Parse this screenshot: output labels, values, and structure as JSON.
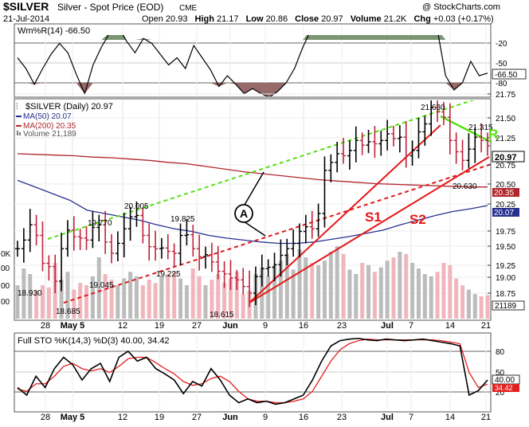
{
  "header": {
    "symbol": "$SILVER",
    "name": "Silver - Spot Price (EOD)",
    "exchange": "CME",
    "date": "21-Jul-2014",
    "open_label": "Open",
    "open": "20.93",
    "high_label": "High",
    "high": "21.17",
    "low_label": "Low",
    "low": "20.86",
    "close_label": "Close",
    "close": "20.97",
    "volume_label": "Volume",
    "volume": "21.2K",
    "chg_label": "Chg",
    "chg": "+0.03 (+0.17%)",
    "copyright": "@ StockCharts.com"
  },
  "colors": {
    "price": "#000000",
    "ma50": "#27308f",
    "ma200": "#b0262b",
    "upper_channel": "#55e010",
    "lower_channel": "#dd1b1b",
    "support": "#e41818",
    "r_line": "#55e010",
    "volume_up": "#bcbcbc",
    "volume_down": "#f0b6bc",
    "wpr_fill": "#6a8a63",
    "wpr_low_fill": "#8c5a5a",
    "sto_k": "#000000",
    "sto_d": "#e32020"
  },
  "top_panel": {
    "title": "Wm%R(14) -66.50",
    "ticks": [
      "-20",
      "-50",
      "-80"
    ],
    "last_value": "-66.50"
  },
  "main_panel": {
    "title": "$SILVER (Daily) 20.97",
    "legend": [
      {
        "text": "MA(50) 20.07",
        "color": "#27308f"
      },
      {
        "text": "MA(200) 20.35",
        "color": "#b0262b"
      },
      {
        "text": "Volume 21,189",
        "color": "#777777"
      }
    ],
    "price_ticks": [
      "21.75",
      "21.50",
      "21.25",
      "20.75",
      "20.50",
      "20.25",
      "19.75",
      "19.50",
      "19.25",
      "19.00",
      "18.75"
    ],
    "last_price": "20.97",
    "ma200_tag": "20.35",
    "ma50_tag": "20.07",
    "volume_tag": "21189",
    "left_volume_ticks": [
      "0K",
      "00",
      "00",
      "00"
    ],
    "annotations": [
      {
        "label": "21.630"
      },
      {
        "label": "21.315"
      },
      {
        "label": "20.630"
      },
      {
        "label": "20.005"
      },
      {
        "label": "19.770"
      },
      {
        "label": "19.825"
      },
      {
        "label": "19.045"
      },
      {
        "label": "19.225"
      },
      {
        "label": "18.930"
      },
      {
        "label": "18.685"
      },
      {
        "label": "18.615"
      }
    ],
    "callouts": {
      "a": "A",
      "s1": "S1",
      "s2": "S2",
      "r": "R"
    }
  },
  "bottom_panel": {
    "title": "Full STO %K(14,3) %D(3) 40.00, 34.42",
    "ticks": [
      "80",
      "50",
      "20"
    ],
    "k_tag": "40.00",
    "d_tag": "34.42"
  },
  "x_axis": {
    "labels": [
      "28",
      "May 5",
      "12",
      "19",
      "27",
      "Jun",
      "9",
      "16",
      "23",
      "Jul",
      "7",
      "14",
      "21"
    ]
  },
  "chart_data": [
    {
      "type": "line",
      "title": "Wm%R(14) -66.50",
      "series": [
        {
          "name": "Wm%R(14)",
          "values": [
            -45,
            -60,
            -82,
            -60,
            -40,
            -25,
            -38,
            -68,
            -95,
            -55,
            -30,
            -10,
            -2,
            -22,
            -38,
            -18,
            -25,
            -40,
            -55,
            -45,
            -60,
            -28,
            -45,
            -62,
            -85,
            -70,
            -82,
            -95,
            -88,
            -95,
            -100,
            -92,
            -80,
            -60,
            -30,
            -5,
            -8,
            -5,
            -10,
            -5,
            -3,
            -6,
            -5,
            -4,
            -3,
            -5,
            -2,
            -3,
            -3,
            -5,
            -5,
            -70,
            -90,
            -80,
            -50,
            -70,
            -66.5
          ]
        }
      ],
      "ylim": [
        -100,
        0
      ]
    },
    {
      "type": "line",
      "title": "$SILVER (Daily) 20.97",
      "series": [
        {
          "name": "$SILVER",
          "values": [
            19.42,
            19.55,
            19.78,
            19.62,
            19.2,
            19.15,
            18.93,
            19.42,
            19.7,
            19.6,
            19.58,
            19.55,
            19.74,
            19.78,
            19.52,
            19.35,
            19.5,
            19.72,
            19.9,
            19.92,
            19.62,
            19.45,
            19.42,
            19.43,
            19.38,
            19.35,
            19.62,
            19.63,
            19.42,
            19.3,
            19.33,
            19.22,
            19.08,
            19.04,
            18.98,
            18.95,
            18.85,
            18.75,
            19.0,
            19.12,
            19.14,
            19.18,
            19.32,
            19.42,
            19.5,
            19.68,
            19.75,
            19.72,
            19.95,
            20.6,
            20.72,
            20.85,
            20.82,
            20.9,
            21.05,
            20.98,
            21.03,
            21.0,
            21.05,
            21.15,
            21.08,
            21.1,
            20.82,
            20.9,
            21.18,
            21.3,
            21.55,
            21.48,
            21.4,
            21.05,
            20.88,
            20.75,
            20.92,
            21.1,
            21.05,
            20.97
          ]
        },
        {
          "name": "MA(50)",
          "values": [
            20.45,
            20.35,
            20.25,
            20.15,
            20.0,
            19.95,
            19.9,
            19.85,
            19.78,
            19.72,
            19.68,
            19.62,
            19.58,
            19.55,
            19.52,
            19.5,
            19.5,
            19.52,
            19.56,
            19.6,
            19.65,
            19.7,
            19.78,
            19.85,
            19.92,
            19.98,
            20.02,
            20.07
          ]
        },
        {
          "name": "MA(200)",
          "values": [
            20.85,
            20.84,
            20.83,
            20.82,
            20.8,
            20.79,
            20.77,
            20.75,
            20.72,
            20.7,
            20.66,
            20.62,
            20.58,
            20.55,
            20.52,
            20.49,
            20.46,
            20.44,
            20.42,
            20.4,
            20.39,
            20.38,
            20.37,
            20.36,
            20.35,
            20.35
          ]
        }
      ]
    },
    {
      "type": "bar",
      "title": "Volume 21,189",
      "values": [
        30,
        45,
        40,
        25,
        30,
        28,
        50,
        35,
        42,
        26,
        32,
        30,
        38,
        55,
        40,
        35,
        30,
        36,
        42,
        38,
        30,
        35,
        32,
        38,
        40,
        42,
        36,
        30,
        45,
        38,
        30,
        35,
        40,
        32,
        36,
        42,
        22,
        25,
        40,
        46,
        38,
        48,
        52,
        58,
        44,
        62,
        55,
        50,
        48,
        52,
        60,
        65,
        58,
        44,
        40,
        50,
        48,
        42,
        46,
        52,
        55,
        60,
        58,
        50,
        45,
        40,
        38,
        42,
        50,
        48,
        36,
        30,
        26,
        22,
        20,
        21
      ]
    },
    {
      "type": "line",
      "title": "Full STO %K(14,3) %D(3) 40.00, 34.42",
      "series": [
        {
          "name": "%K(14,3)",
          "values": [
            30,
            20,
            45,
            30,
            55,
            70,
            60,
            40,
            55,
            62,
            38,
            70,
            78,
            65,
            70,
            55,
            48,
            40,
            22,
            38,
            32,
            55,
            40,
            20,
            10,
            15,
            10,
            12,
            8,
            10,
            15,
            20,
            40,
            65,
            85,
            92,
            94,
            95,
            93,
            92,
            94,
            93,
            92,
            93,
            94,
            92,
            90,
            88,
            85,
            20,
            26,
            40
          ]
        },
        {
          "name": "%D(3)",
          "values": [
            28,
            25,
            35,
            35,
            45,
            58,
            62,
            55,
            52,
            55,
            50,
            58,
            68,
            70,
            70,
            63,
            55,
            48,
            38,
            33,
            35,
            42,
            45,
            38,
            25,
            15,
            12,
            12,
            10,
            10,
            12,
            15,
            25,
            45,
            65,
            80,
            88,
            92,
            94,
            93,
            93,
            93,
            93,
            93,
            93,
            93,
            92,
            90,
            88,
            50,
            30,
            34.42
          ]
        }
      ],
      "ylim": [
        0,
        100
      ]
    }
  ]
}
